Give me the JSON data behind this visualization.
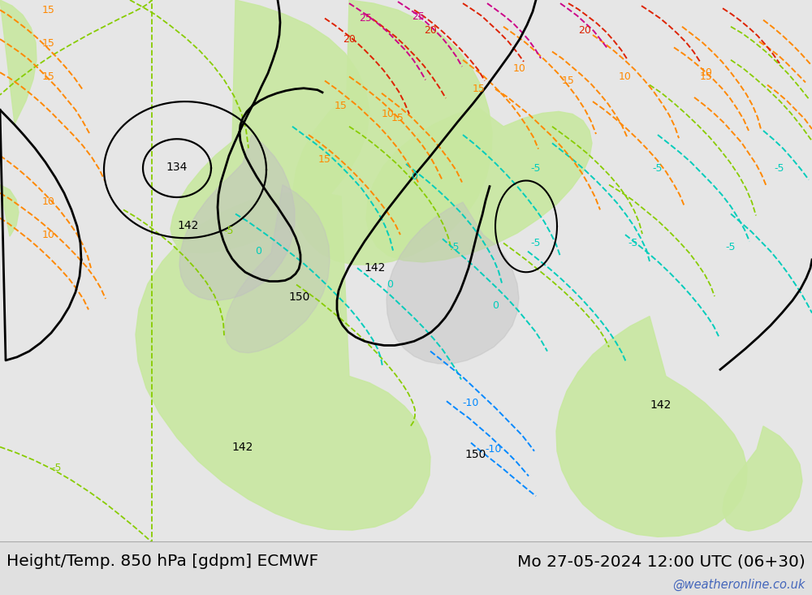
{
  "title_left": "Height/Temp. 850 hPa [gdpm] ECMWF",
  "title_right": "Mo 27-05-2024 12:00 UTC (06+30)",
  "watermark": "@weatheronline.co.uk",
  "watermark_color": "#4466bb",
  "title_fontsize": 14.5,
  "figsize": [
    10.0,
    7.33
  ],
  "dpi": 100,
  "map_bg": "#e8e8e8",
  "land_gray": "#c8c8c8",
  "green": "#c8e8a0",
  "bottom_bg": "#f0f0f0"
}
